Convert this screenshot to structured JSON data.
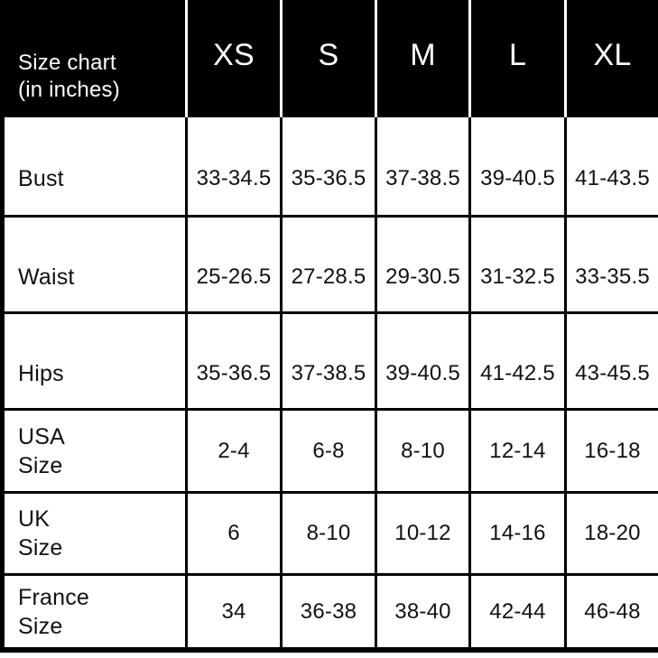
{
  "colors": {
    "header_bg": "#000000",
    "header_text": "#ffffff",
    "header_divider": "#ffffff",
    "grid_line": "#000000",
    "cell_bg": "#ffffff",
    "body_text": "#111111"
  },
  "chart_data": {
    "type": "table",
    "title": "Size chart (in inches)",
    "title_lines": [
      "Size chart",
      "(in inches)"
    ],
    "columns": [
      "XS",
      "S",
      "M",
      "L",
      "XL"
    ],
    "rows": [
      {
        "label": "Bust",
        "label_lines": [
          "Bust"
        ],
        "values": [
          "33-34.5",
          "35-36.5",
          "37-38.5",
          "39-40.5",
          "41-43.5"
        ]
      },
      {
        "label": "Waist",
        "label_lines": [
          "Waist"
        ],
        "values": [
          "25-26.5",
          "27-28.5",
          "29-30.5",
          "31-32.5",
          "33-35.5"
        ]
      },
      {
        "label": "Hips",
        "label_lines": [
          "Hips"
        ],
        "values": [
          "35-36.5",
          "37-38.5",
          "39-40.5",
          "41-42.5",
          "43-45.5"
        ]
      },
      {
        "label": "USA Size",
        "label_lines": [
          "USA",
          "Size"
        ],
        "values": [
          "2-4",
          "6-8",
          "8-10",
          "12-14",
          "16-18"
        ]
      },
      {
        "label": "UK Size",
        "label_lines": [
          "UK",
          "Size"
        ],
        "values": [
          "6",
          "8-10",
          "10-12",
          "14-16",
          "18-20"
        ]
      },
      {
        "label": "France Size",
        "label_lines": [
          "France",
          "Size"
        ],
        "values": [
          "34",
          "36-38",
          "38-40",
          "42-44",
          "46-48"
        ]
      }
    ]
  }
}
